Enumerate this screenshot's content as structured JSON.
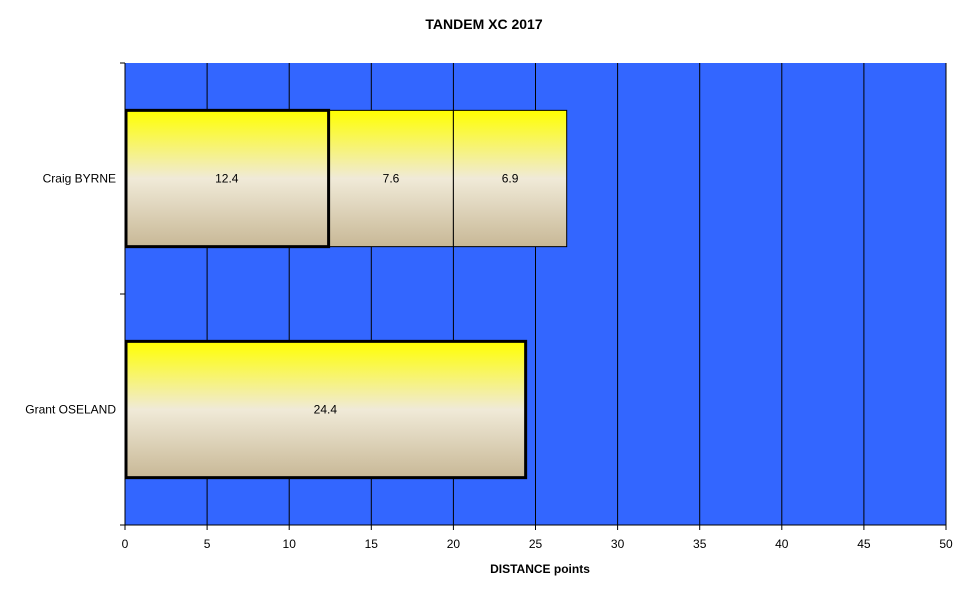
{
  "chart_data": {
    "type": "bar",
    "orientation": "horizontal",
    "stacked": true,
    "title": "TANDEM XC 2017",
    "xlabel": "DISTANCE  points",
    "ylabel": "",
    "xlim": [
      0,
      50
    ],
    "x_ticks": [
      0,
      5,
      10,
      15,
      20,
      25,
      30,
      35,
      40,
      45,
      50
    ],
    "grid": "vertical",
    "plot_background": "#3366FF",
    "bar_gradient": [
      "#FFFF00",
      "#F0EAD8",
      "#C8B896"
    ],
    "categories": [
      "Craig BYRNE",
      "Grant OSELAND"
    ],
    "bars": [
      {
        "category": "Craig BYRNE",
        "segments": [
          12.4,
          7.6,
          6.9
        ],
        "highlighted": [
          0
        ]
      },
      {
        "category": "Grant OSELAND",
        "segments": [
          24.4
        ],
        "highlighted": [
          0
        ]
      }
    ]
  }
}
